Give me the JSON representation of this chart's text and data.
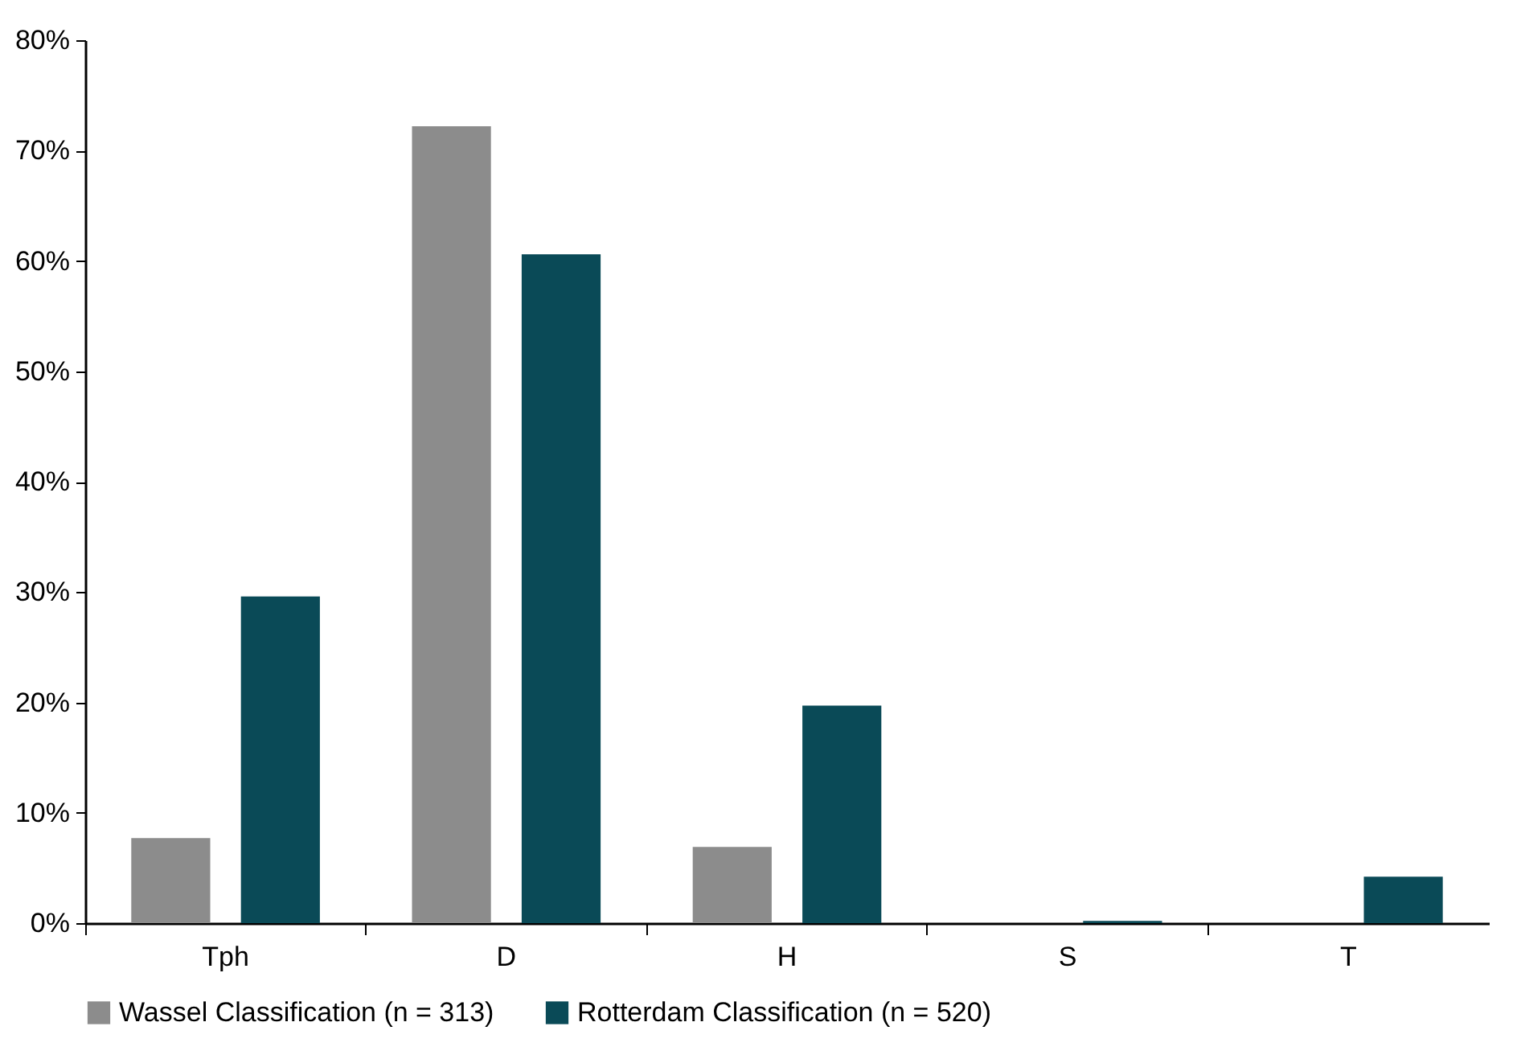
{
  "chart_data": {
    "type": "bar",
    "categories": [
      "Tph",
      "D",
      "H",
      "S",
      "T"
    ],
    "series": [
      {
        "name": "Wassel Classification (n = 313)",
        "color": "#8c8c8c",
        "values": [
          7.7,
          72.2,
          6.9,
          0,
          0
        ]
      },
      {
        "name": "Rotterdam Classification (n = 520)",
        "color": "#0a4a57",
        "values": [
          29.6,
          60.6,
          19.7,
          0.2,
          4.2
        ]
      }
    ],
    "ylim": [
      0,
      80
    ],
    "yticks": [
      {
        "value": 0,
        "label": "0%"
      },
      {
        "value": 10,
        "label": "10%"
      },
      {
        "value": 20,
        "label": "20%"
      },
      {
        "value": 30,
        "label": "30%"
      },
      {
        "value": 40,
        "label": "40%"
      },
      {
        "value": 50,
        "label": "50%"
      },
      {
        "value": 60,
        "label": "60%"
      },
      {
        "value": 70,
        "label": "70%"
      },
      {
        "value": 80,
        "label": "80%"
      }
    ],
    "grid": false,
    "legend": "bottom"
  }
}
